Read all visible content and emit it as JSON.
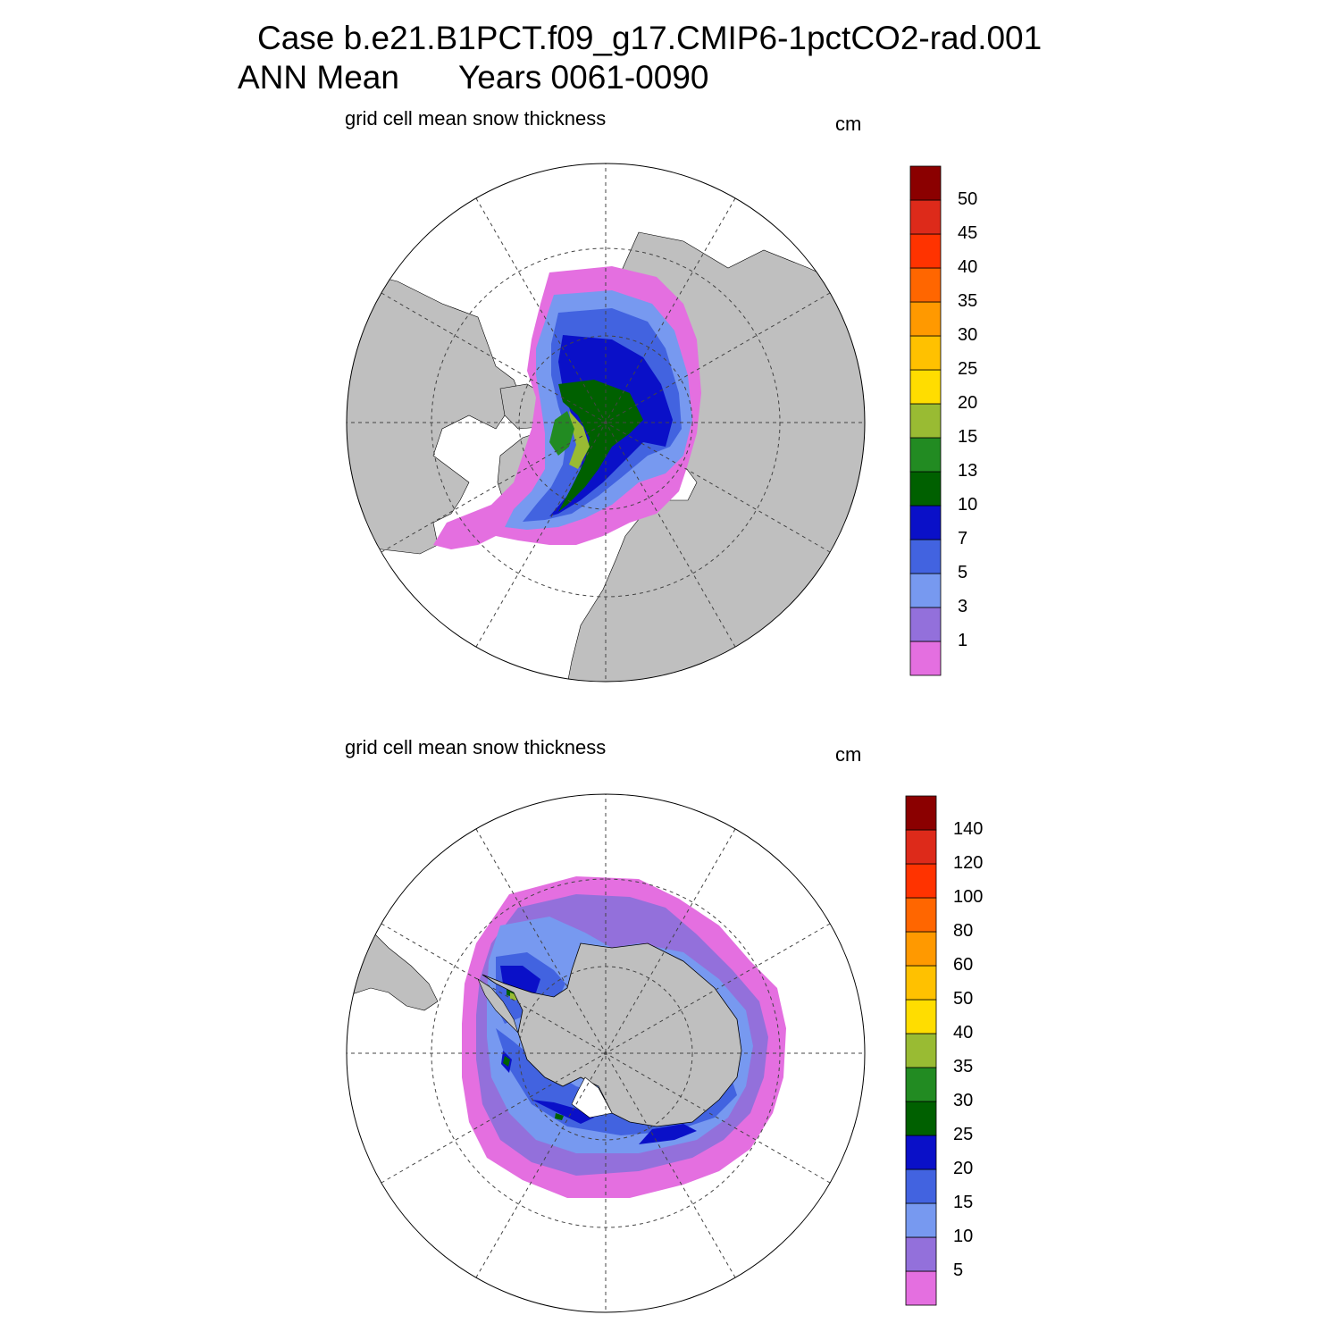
{
  "header": {
    "case_line": "Case b.e21.B1PCT.f09_g17.CMIP6-1pctCO2-rad.001",
    "period_label": "ANN Mean",
    "years_label": "Years 0061-0090"
  },
  "panels": [
    {
      "id": "north",
      "title": "grid cell mean snow thickness",
      "units": "cm",
      "colorbar": {
        "labels": [
          "1",
          "3",
          "5",
          "7",
          "10",
          "13",
          "15",
          "20",
          "25",
          "30",
          "35",
          "40",
          "45",
          "50"
        ],
        "colors": [
          "#e46fe0",
          "#9370db",
          "#7799f0",
          "#4263e0",
          "#0a10c8",
          "#006000",
          "#228b22",
          "#99bb33",
          "#ffdd00",
          "#ffc100",
          "#ff9900",
          "#ff6600",
          "#ff3300",
          "#dd2a1a",
          "#8b0000"
        ]
      }
    },
    {
      "id": "south",
      "title": "grid cell mean snow thickness",
      "units": "cm",
      "colorbar": {
        "labels": [
          "5",
          "10",
          "15",
          "20",
          "25",
          "30",
          "35",
          "40",
          "50",
          "60",
          "80",
          "100",
          "120",
          "140"
        ],
        "colors": [
          "#e46fe0",
          "#9370db",
          "#7799f0",
          "#4263e0",
          "#0a10c8",
          "#006000",
          "#228b22",
          "#99bb33",
          "#ffdd00",
          "#ffc100",
          "#ff9900",
          "#ff6600",
          "#ff3300",
          "#dd2a1a",
          "#8b0000"
        ]
      }
    }
  ],
  "colors": {
    "land": "#bfbfbf",
    "no_data": "#ffffff"
  }
}
